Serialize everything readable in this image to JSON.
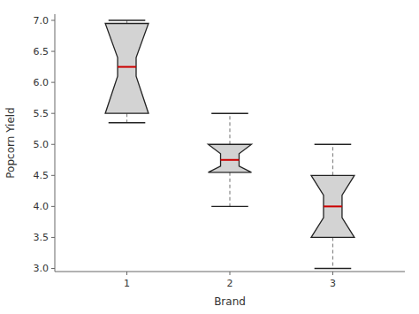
{
  "chart_data": {
    "type": "box",
    "xlabel": "Brand",
    "ylabel": "Popcorn Yield",
    "x": [
      1,
      2,
      3
    ],
    "median": [
      6.25,
      4.75,
      4.0
    ],
    "q1": [
      5.5,
      4.55,
      3.5
    ],
    "q3": [
      6.95,
      5.0,
      4.5
    ],
    "whisker_low": [
      5.35,
      4.0,
      3.0
    ],
    "whisker_high": [
      7.0,
      5.5,
      5.0
    ],
    "notch_low": [
      6.1,
      4.65,
      3.82
    ],
    "notch_high": [
      6.4,
      4.85,
      4.18
    ],
    "xlim": [
      0.3,
      3.7
    ],
    "xticks": [
      1,
      2,
      3
    ],
    "ylim": [
      2.95,
      7.1
    ],
    "yticks": [
      {
        "value": 3.0,
        "label": "3.0"
      },
      3.5,
      {
        "value": 4.0,
        "label": "4.0"
      },
      4.5,
      {
        "value": 5.0,
        "label": "5.0"
      },
      5.5,
      {
        "value": 6.0,
        "label": "6.0"
      },
      6.5,
      {
        "value": 7.0,
        "label": "7.0"
      }
    ],
    "color": "#d3d3d3"
  }
}
